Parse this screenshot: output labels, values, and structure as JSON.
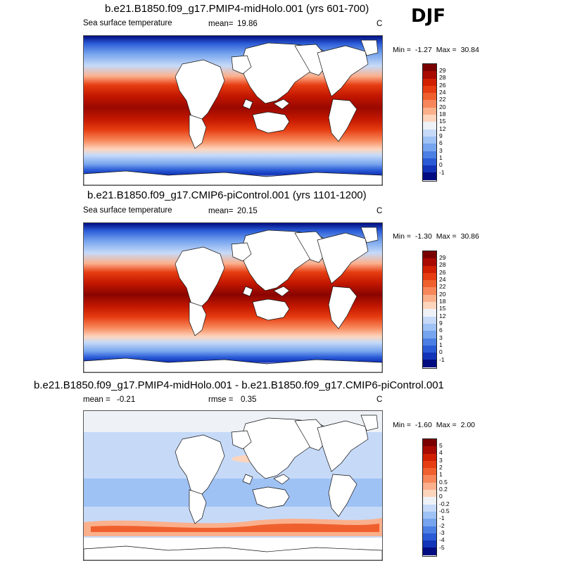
{
  "season": "DJF",
  "panels": [
    {
      "id": "midholo",
      "title": "b.e21.B1850.f09_g17.PMIP4-midHolo.001 (yrs 601-700)",
      "left_label": "Sea surface temperature",
      "mean_label": "mean=",
      "mean_value": "19.86",
      "rmse_label": "",
      "rmse_value": "",
      "units": "C",
      "min_label": "Min =",
      "min_value": "-1.27",
      "max_label": "Max =",
      "max_value": "30.84",
      "colorbar": {
        "labels": [
          "29",
          "28",
          "26",
          "24",
          "22",
          "20",
          "18",
          "15",
          "12",
          "9",
          "6",
          "3",
          "1",
          "0",
          "-1"
        ],
        "colors": [
          "#7a0000",
          "#a80a00",
          "#d12000",
          "#e63d12",
          "#f0602e",
          "#f7875a",
          "#fbb08c",
          "#fdd5bd",
          "#eef2f7",
          "#c6daf8",
          "#9fc2f5",
          "#76a4ee",
          "#4b7fe3",
          "#2a5bd6",
          "#1234b8",
          "#000c80"
        ]
      }
    },
    {
      "id": "picontrol",
      "title": "b.e21.B1850.f09_g17.CMIP6-piControl.001 (yrs 1101-1200)",
      "left_label": "Sea surface temperature",
      "mean_label": "mean=",
      "mean_value": "20.15",
      "rmse_label": "",
      "rmse_value": "",
      "units": "C",
      "min_label": "Min =",
      "min_value": "-1.30",
      "max_label": "Max =",
      "max_value": "30.86",
      "colorbar": {
        "labels": [
          "29",
          "28",
          "26",
          "24",
          "22",
          "20",
          "18",
          "15",
          "12",
          "9",
          "6",
          "3",
          "1",
          "0",
          "-1"
        ],
        "colors": [
          "#7a0000",
          "#a80a00",
          "#d12000",
          "#e63d12",
          "#f0602e",
          "#f7875a",
          "#fbb08c",
          "#fdd5bd",
          "#eef2f7",
          "#c6daf8",
          "#9fc2f5",
          "#76a4ee",
          "#4b7fe3",
          "#2a5bd6",
          "#1234b8",
          "#000c80"
        ]
      }
    },
    {
      "id": "difference",
      "title": "b.e21.B1850.f09_g17.PMIP4-midHolo.001 - b.e21.B1850.f09_g17.CMIP6-piControl.001",
      "left_label": "mean =",
      "mean_label": "",
      "mean_value": "-0.21",
      "rmse_label": "rmse =",
      "rmse_value": "0.35",
      "units": "C",
      "min_label": "Min =",
      "min_value": "-1.60",
      "max_label": "Max =",
      "max_value": "2.00",
      "colorbar": {
        "labels": [
          "5",
          "4",
          "3",
          "2",
          "1",
          "0.5",
          "0.2",
          "0",
          "-0.2",
          "-0.5",
          "-1",
          "-2",
          "-3",
          "-4",
          "-5"
        ],
        "colors": [
          "#7a0000",
          "#a80a00",
          "#d12000",
          "#e63d12",
          "#f0602e",
          "#f7875a",
          "#fbb08c",
          "#fdd5bd",
          "#eef2f7",
          "#c6daf8",
          "#9fc2f5",
          "#76a4ee",
          "#4b7fe3",
          "#2a5bd6",
          "#1234b8",
          "#000c80"
        ]
      }
    }
  ]
}
